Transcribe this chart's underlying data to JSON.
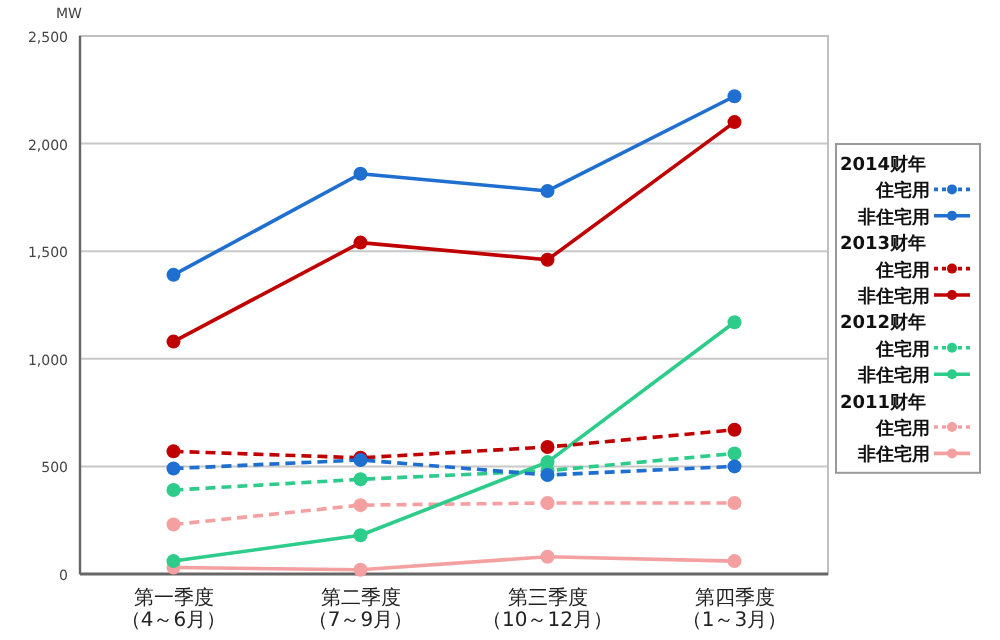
{
  "chart_data": {
    "type": "line",
    "ylabel": "MW",
    "categories": [
      "第一季度（4～6月）",
      "第二季度（7～9月）",
      "第三季度（10～12月）",
      "第四季度（1～3月）"
    ],
    "ylim": [
      0,
      2500
    ],
    "yticks": [
      0,
      500,
      {
        "value": 1000,
        "label": "1,000"
      },
      {
        "value": 1500,
        "label": "1,500"
      },
      {
        "value": 2000,
        "label": "2,000"
      },
      {
        "value": 2500,
        "label": "2,500"
      }
    ],
    "grid": "y",
    "legend": "right",
    "marker": "circle",
    "annotations": [
      "2014财年",
      "2013财年",
      "2012财年",
      "2011财年"
    ],
    "series": [
      {
        "name": "住宅用",
        "color": "#1f6fd0",
        "line_style": "dashed",
        "values": [
          490,
          530,
          460,
          500
        ]
      },
      {
        "name": "非住宅用",
        "color": "#1f6fd0",
        "line_style": "solid",
        "values": [
          1390,
          1860,
          1780,
          2220
        ]
      },
      {
        "name": "住宅用",
        "color": "#c00000",
        "line_style": "dashed",
        "values": [
          570,
          540,
          590,
          670
        ]
      },
      {
        "name": "非住宅用",
        "color": "#c00000",
        "line_style": "solid",
        "values": [
          1080,
          1540,
          1460,
          2100
        ]
      },
      {
        "name": "住宅用",
        "color": "#2ecc8a",
        "line_style": "dashed",
        "values": [
          390,
          440,
          480,
          560
        ]
      },
      {
        "name": "非住宅用",
        "color": "#2ecc8a",
        "line_style": "solid",
        "values": [
          60,
          180,
          520,
          1170
        ]
      },
      {
        "name": "住宅用",
        "color": "#f4a0a0",
        "line_style": "dashed",
        "values": [
          230,
          320,
          330,
          330
        ]
      },
      {
        "name": "非住宅用",
        "color": "#f4a0a0",
        "line_style": "solid",
        "values": [
          30,
          20,
          80,
          60
        ]
      }
    ]
  }
}
